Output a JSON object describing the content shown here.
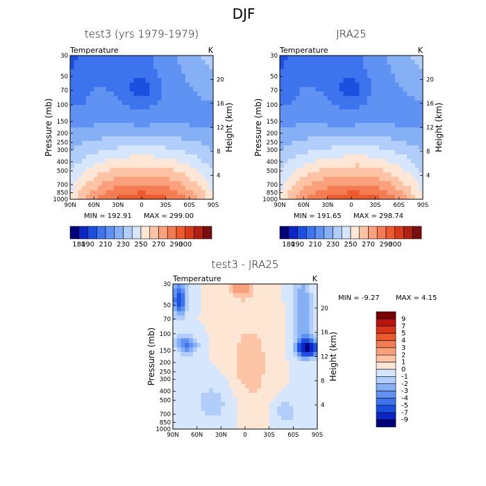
{
  "figure_title": "DJF",
  "chart_data": [
    {
      "type": "contour",
      "title": "test3 (yrs 1979-1979)",
      "variable": "Temperature",
      "units": "K",
      "ylabel": "Pressure (mb)",
      "y2label": "Height (km)",
      "x_ticks": [
        "90N",
        "60N",
        "30N",
        "0",
        "30S",
        "60S",
        "90S"
      ],
      "y_ticks": [
        "30",
        "50",
        "70",
        "100",
        "150",
        "200",
        "250",
        "300",
        "400",
        "500",
        "700",
        "850",
        "1000"
      ],
      "y2_ticks": [
        "20",
        "16",
        "12",
        "8",
        "4"
      ],
      "min_label": "MIN = 192.91",
      "max_label": "MAX = 299.00",
      "min": 192.91,
      "max": 299.0,
      "levels": [
        180,
        190,
        200,
        210,
        220,
        230,
        240,
        250,
        260,
        270,
        280,
        290,
        300
      ],
      "colorbar_labels": [
        "180",
        "190",
        "210",
        "230",
        "250",
        "270",
        "290",
        "300"
      ]
    },
    {
      "type": "contour",
      "title": "JRA25",
      "variable": "Temperature",
      "units": "K",
      "ylabel": "Pressure (mb)",
      "y2label": "Height (km)",
      "x_ticks": [
        "90N",
        "60N",
        "30N",
        "0",
        "30S",
        "60S",
        "90S"
      ],
      "y_ticks": [
        "30",
        "50",
        "70",
        "100",
        "150",
        "200",
        "250",
        "300",
        "400",
        "500",
        "700",
        "850",
        "1000"
      ],
      "y2_ticks": [
        "20",
        "16",
        "12",
        "8",
        "4"
      ],
      "min_label": "MIN = 191.65",
      "max_label": "MAX = 298.74",
      "min": 191.65,
      "max": 298.74,
      "levels": [
        180,
        190,
        200,
        210,
        220,
        230,
        240,
        250,
        260,
        270,
        280,
        290,
        300
      ],
      "colorbar_labels": [
        "180",
        "190",
        "210",
        "230",
        "250",
        "270",
        "290",
        "300"
      ]
    },
    {
      "type": "contour",
      "title": "test3 - JRA25",
      "variable": "Temperature",
      "units": "K",
      "ylabel": "Pressure (mb)",
      "y2label": "Height (km)",
      "x_ticks": [
        "90N",
        "60N",
        "30N",
        "0",
        "30S",
        "60S",
        "90S"
      ],
      "y_ticks": [
        "30",
        "50",
        "70",
        "100",
        "150",
        "200",
        "250",
        "300",
        "400",
        "500",
        "700",
        "850",
        "1000"
      ],
      "y2_ticks": [
        "20",
        "16",
        "12",
        "8",
        "4"
      ],
      "min_label": "MIN = -9.27",
      "max_label": "MAX = 4.15",
      "min": -9.27,
      "max": 4.15,
      "levels": [
        9,
        7,
        5,
        4,
        3,
        2,
        1,
        0,
        -1,
        -2,
        -3,
        -4,
        -5,
        -7,
        -9
      ],
      "colorbar_labels": [
        "9",
        "7",
        "5",
        "4",
        "3",
        "2",
        "1",
        "0",
        "-1",
        "-2",
        "-3",
        "-4",
        "-5",
        "-7",
        "-9"
      ]
    }
  ],
  "colors": {
    "temperature_scale": [
      "#00007a",
      "#0a26c4",
      "#1a4fe0",
      "#3d74ee",
      "#5f92f2",
      "#86b0f6",
      "#b0cef9",
      "#d6e6fc",
      "#fde6d4",
      "#fcc4a4",
      "#faa07a",
      "#f47c52",
      "#ec5a2e",
      "#d83a18",
      "#b02010",
      "#7a0e0e"
    ],
    "difference_scale": [
      "#7a0000",
      "#b8140f",
      "#d83418",
      "#ec5a2e",
      "#f47c52",
      "#faa07a",
      "#fcc4a4",
      "#fde6d4",
      "#d6e6fc",
      "#b0cef9",
      "#86b0f6",
      "#5f92f2",
      "#3d74ee",
      "#1a4fe0",
      "#0a26c4",
      "#00007a"
    ]
  }
}
